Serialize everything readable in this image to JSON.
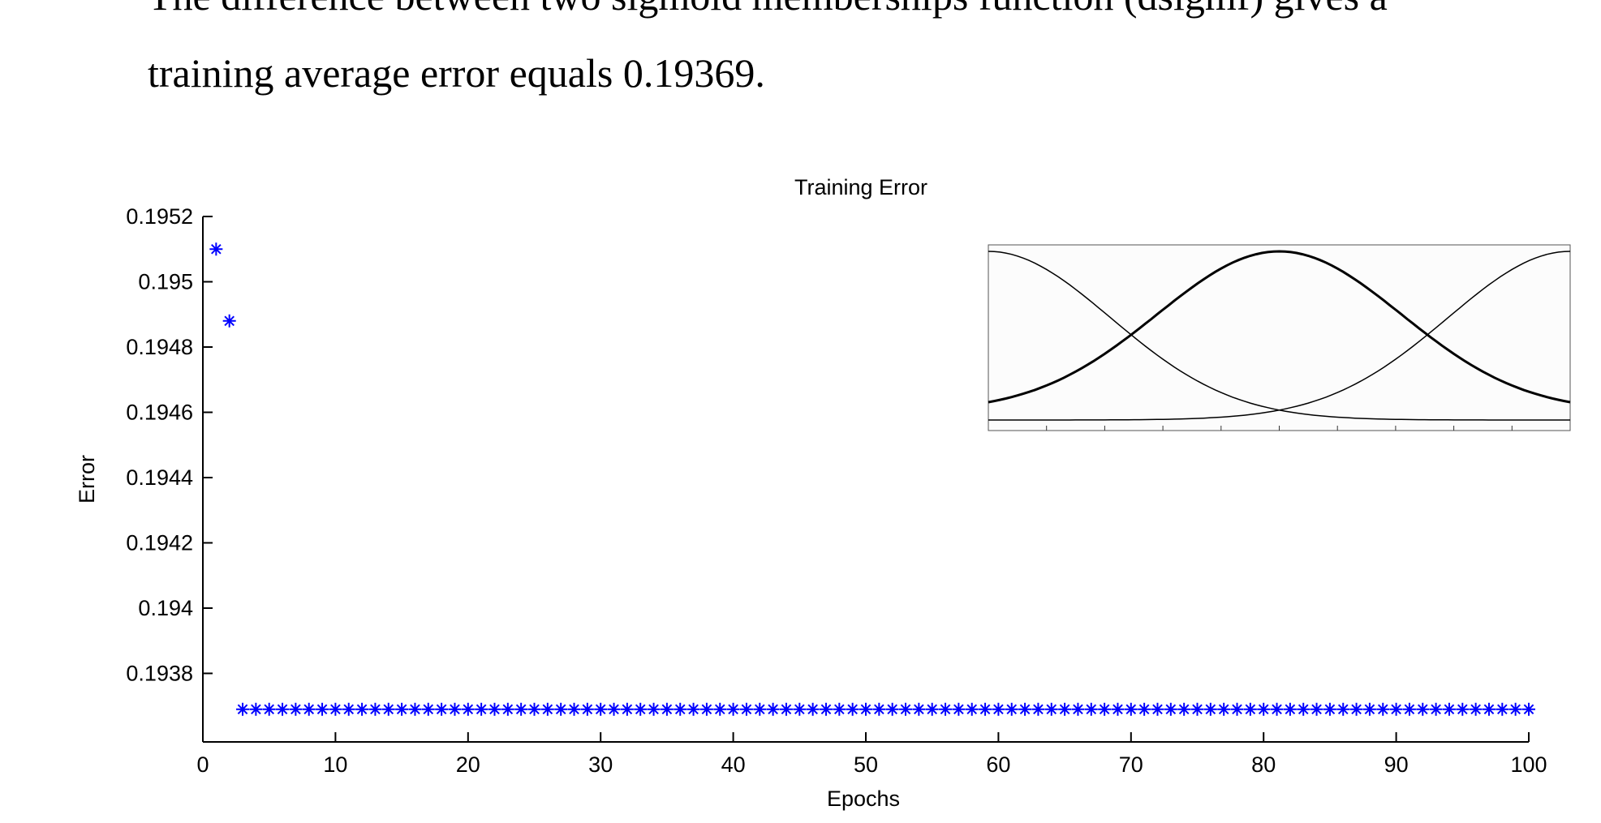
{
  "text": {
    "lines": [
      "The difference between two sigmoid memberships function (dsigmf) gives a",
      "training average error equals 0.19369."
    ]
  },
  "chart_data": {
    "type": "scatter",
    "title": "Training Error",
    "x_label": "Epochs",
    "y_label": "Error",
    "color": "#0000ff",
    "marker": "asterisk",
    "x": [
      1,
      2,
      3,
      4,
      5,
      6,
      7,
      8,
      9,
      10,
      11,
      12,
      13,
      14,
      15,
      16,
      17,
      18,
      19,
      20,
      21,
      22,
      23,
      24,
      25,
      26,
      27,
      28,
      29,
      30,
      31,
      32,
      33,
      34,
      35,
      36,
      37,
      38,
      39,
      40,
      41,
      42,
      43,
      44,
      45,
      46,
      47,
      48,
      49,
      50,
      51,
      52,
      53,
      54,
      55,
      56,
      57,
      58,
      59,
      60,
      61,
      62,
      63,
      64,
      65,
      66,
      67,
      68,
      69,
      70,
      71,
      72,
      73,
      74,
      75,
      76,
      77,
      78,
      79,
      80,
      81,
      82,
      83,
      84,
      85,
      86,
      87,
      88,
      89,
      90,
      91,
      92,
      93,
      94,
      95,
      96,
      97,
      98,
      99,
      100
    ],
    "values": [
      0.1951,
      0.19488,
      0.19369,
      0.19369,
      0.19369,
      0.19369,
      0.19369,
      0.19369,
      0.19369,
      0.19369,
      0.19369,
      0.19369,
      0.19369,
      0.19369,
      0.19369,
      0.19369,
      0.19369,
      0.19369,
      0.19369,
      0.19369,
      0.19369,
      0.19369,
      0.19369,
      0.19369,
      0.19369,
      0.19369,
      0.19369,
      0.19369,
      0.19369,
      0.19369,
      0.19369,
      0.19369,
      0.19369,
      0.19369,
      0.19369,
      0.19369,
      0.19369,
      0.19369,
      0.19369,
      0.19369,
      0.19369,
      0.19369,
      0.19369,
      0.19369,
      0.19369,
      0.19369,
      0.19369,
      0.19369,
      0.19369,
      0.19369,
      0.19369,
      0.19369,
      0.19369,
      0.19369,
      0.19369,
      0.19369,
      0.19369,
      0.19369,
      0.19369,
      0.19369,
      0.19369,
      0.19369,
      0.19369,
      0.19369,
      0.19369,
      0.19369,
      0.19369,
      0.19369,
      0.19369,
      0.19369,
      0.19369,
      0.19369,
      0.19369,
      0.19369,
      0.19369,
      0.19369,
      0.19369,
      0.19369,
      0.19369,
      0.19369,
      0.19369,
      0.19369,
      0.19369,
      0.19369,
      0.19369,
      0.19369,
      0.19369,
      0.19369,
      0.19369,
      0.19369,
      0.19369,
      0.19369,
      0.19369,
      0.19369,
      0.19369,
      0.19369,
      0.19369,
      0.19369,
      0.19369,
      0.19369
    ],
    "xlim": [
      0,
      100
    ],
    "xticks": [
      0,
      10,
      20,
      30,
      40,
      50,
      60,
      70,
      80,
      90,
      100
    ],
    "ylim": [
      0.19359,
      0.1952
    ],
    "yticks": [
      0.1938,
      0.194,
      0.1942,
      0.1944,
      0.1946,
      0.1948,
      0.195,
      0.1952
    ]
  }
}
